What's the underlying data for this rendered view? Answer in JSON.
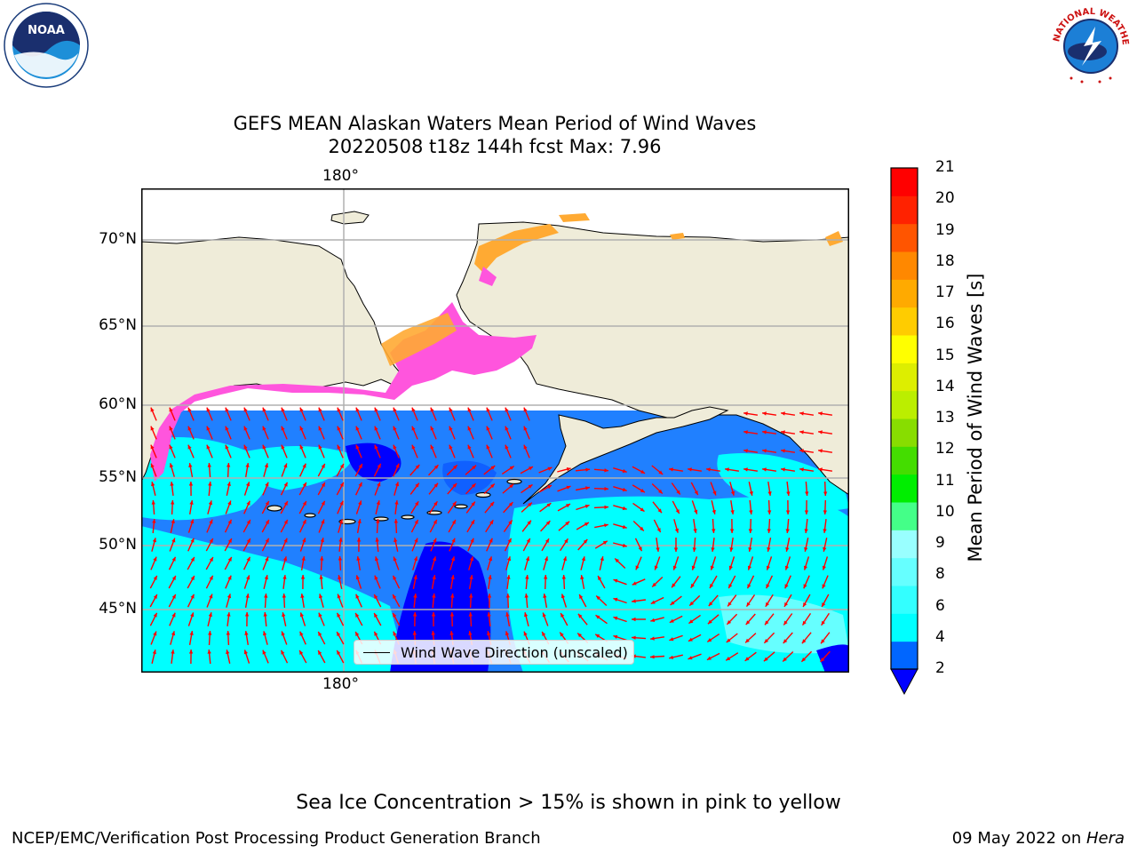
{
  "title_line1": "GEFS MEAN Alaskan Waters Mean Period of Wind Waves",
  "title_line2": "20220508 t18z 144h fcst   Max: 7.96",
  "map": {
    "lon_tick_top": "180°",
    "lon_tick_bottom": "180°",
    "lat_ticks": [
      "70°N",
      "65°N",
      "60°N",
      "55°N",
      "50°N",
      "45°N"
    ],
    "legend_label": "Wind Wave Direction (unscaled)",
    "colors": {
      "land": "#efecd9",
      "coast": "#000000",
      "grid": "#b0b0b0",
      "arrow": "#ff0000",
      "ice_pink": "#ff55dd",
      "ice_orange": "#ffaa33"
    }
  },
  "colorbar": {
    "title": "Mean Period of Wind Waves [s]",
    "tick_labels": [
      "2",
      "4",
      "6",
      "8",
      "9",
      "10",
      "11",
      "12",
      "13",
      "14",
      "15",
      "16",
      "17",
      "18",
      "19",
      "20",
      "21"
    ],
    "colors": [
      "#0066ff",
      "#00ffff",
      "#33ffff",
      "#66ffff",
      "#99ffff",
      "#44ff88",
      "#00ee00",
      "#44dd00",
      "#88dd00",
      "#bbee00",
      "#ddee00",
      "#ffff00",
      "#ffcc00",
      "#ffaa00",
      "#ff8800",
      "#ff5500",
      "#ff2200",
      "#ff0000"
    ],
    "under_color": "#0000ff"
  },
  "note": "Sea Ice Concentration > 15% is shown in pink to yellow",
  "footer_left": "NCEP/EMC/Verification Post Processing Product Generation Branch",
  "footer_right_prefix": "09 May 2022 on ",
  "footer_right_host": "Hera",
  "logos": {
    "noaa_text": "NOAA",
    "nws_text": "NATIONAL WEATHER SERVICE"
  }
}
